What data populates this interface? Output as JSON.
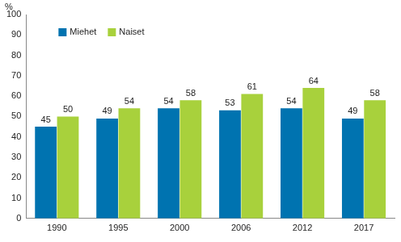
{
  "chart_data": {
    "type": "bar",
    "y_label": "%",
    "categories": [
      "1990",
      "1995",
      "2000",
      "2006",
      "2012",
      "2017"
    ],
    "series": [
      {
        "name": "Miehet",
        "color": "#0073b0",
        "values": [
          45,
          49,
          54,
          53,
          54,
          49
        ]
      },
      {
        "name": "Naiset",
        "color": "#a8d13c",
        "values": [
          50,
          54,
          58,
          61,
          64,
          58
        ]
      }
    ],
    "ylim": [
      0,
      100
    ],
    "yticks": [
      0,
      10,
      20,
      30,
      40,
      50,
      60,
      70,
      80,
      90,
      100
    ],
    "grid": false,
    "legend": "upper left",
    "data_labels": true
  }
}
